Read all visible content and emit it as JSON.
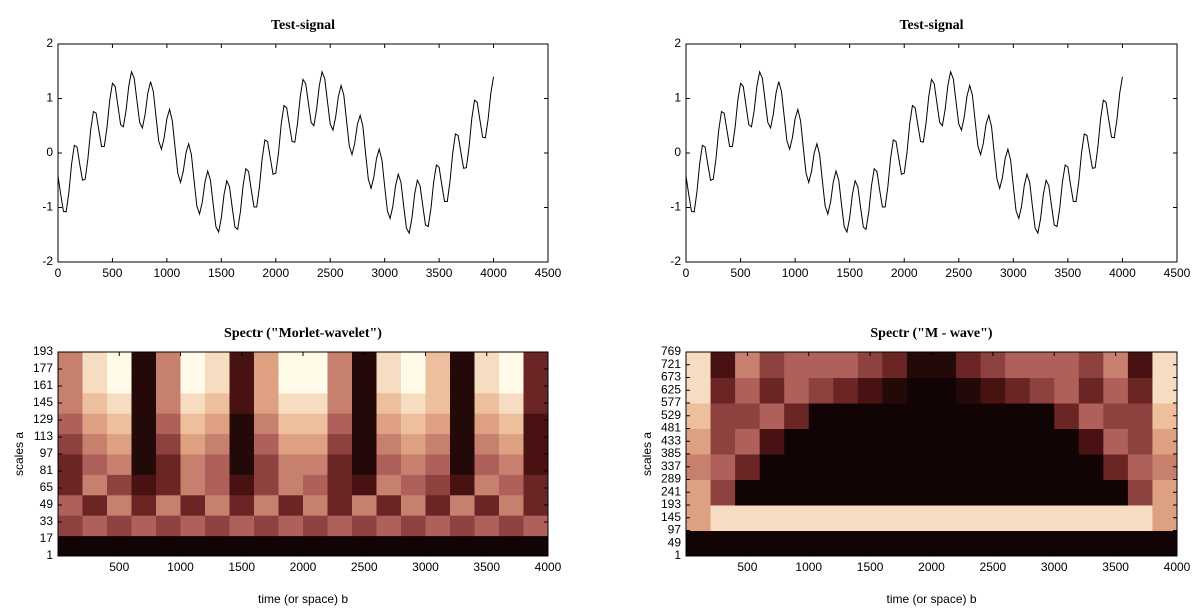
{
  "chart_data": [
    {
      "type": "line",
      "title": "Test-signal",
      "color": "#000000",
      "xlim": [
        0,
        4500
      ],
      "xticks": [
        0,
        500,
        1000,
        1500,
        2000,
        2500,
        3000,
        3500,
        4000,
        4500
      ],
      "ylim": [
        -2,
        2
      ],
      "yticks": [
        -2,
        -1,
        0,
        1,
        2
      ],
      "x": [
        0,
        25,
        50,
        75,
        100,
        125,
        150,
        175,
        200,
        225,
        250,
        275,
        300,
        325,
        350,
        375,
        400,
        425,
        450,
        475,
        500,
        525,
        550,
        575,
        600,
        625,
        650,
        675,
        700,
        725,
        750,
        775,
        800,
        825,
        850,
        875,
        900,
        925,
        950,
        975,
        1000,
        1025,
        1050,
        1075,
        1100,
        1125,
        1150,
        1175,
        1200,
        1225,
        1250,
        1275,
        1300,
        1325,
        1350,
        1375,
        1400,
        1425,
        1450,
        1475,
        1500,
        1525,
        1550,
        1575,
        1600,
        1625,
        1650,
        1675,
        1700,
        1725,
        1750,
        1775,
        1800,
        1825,
        1850,
        1875,
        1900,
        1925,
        1950,
        1975,
        2000,
        2025,
        2050,
        2075,
        2100,
        2125,
        2150,
        2175,
        2200,
        2225,
        2250,
        2275,
        2300,
        2325,
        2350,
        2375,
        2400,
        2425,
        2450,
        2475,
        2500,
        2525,
        2550,
        2575,
        2600,
        2625,
        2650,
        2675,
        2700,
        2725,
        2750,
        2775,
        2800,
        2825,
        2850,
        2875,
        2900,
        2925,
        2950,
        2975,
        3000,
        3025,
        3050,
        3075,
        3100,
        3125,
        3150,
        3175,
        3200,
        3225,
        3250,
        3275,
        3300,
        3325,
        3350,
        3375,
        3400,
        3425,
        3450,
        3475,
        3500,
        3525,
        3550,
        3575,
        3600,
        3625,
        3650,
        3675,
        3700,
        3725,
        3750,
        3775,
        3800,
        3825,
        3850,
        3875,
        3900,
        3925,
        3950,
        3975,
        4000
      ],
      "values": [
        -0.42,
        -0.76,
        -1.07,
        -1.08,
        -0.72,
        -0.2,
        0.14,
        0.11,
        -0.21,
        -0.5,
        -0.48,
        -0.1,
        0.42,
        0.76,
        0.73,
        0.42,
        0.12,
        0.12,
        0.47,
        0.97,
        1.28,
        1.22,
        0.87,
        0.52,
        0.48,
        0.78,
        1.23,
        1.49,
        1.37,
        0.96,
        0.56,
        0.46,
        0.71,
        1.1,
        1.31,
        1.13,
        0.67,
        0.22,
        0.07,
        0.28,
        0.63,
        0.8,
        0.59,
        0.1,
        -0.37,
        -0.54,
        -0.34,
        0,
        0.17,
        -0.03,
        -0.51,
        -0.97,
        -1.12,
        -0.9,
        -0.53,
        -0.33,
        -0.5,
        -0.94,
        -1.35,
        -1.45,
        -1.19,
        -0.76,
        -0.51,
        -0.62,
        -1,
        -1.36,
        -1.4,
        -1.08,
        -0.6,
        -0.29,
        -0.34,
        -0.68,
        -0.99,
        -0.99,
        -0.62,
        -0.1,
        0.24,
        0.21,
        -0.1,
        -0.39,
        -0.37,
        0,
        0.53,
        0.87,
        0.83,
        0.51,
        0.21,
        0.2,
        0.55,
        1.04,
        1.35,
        1.27,
        0.91,
        0.56,
        0.5,
        0.8,
        1.24,
        1.49,
        1.36,
        0.94,
        0.53,
        0.42,
        0.66,
        1.04,
        1.24,
        1.06,
        0.59,
        0.13,
        -0.03,
        0.18,
        0.53,
        0.69,
        0.49,
        -0.01,
        -0.48,
        -0.65,
        -0.45,
        -0.1,
        0.07,
        -0.13,
        -0.61,
        -1.06,
        -1.2,
        -0.98,
        -0.6,
        -0.39,
        -0.54,
        -0.98,
        -1.38,
        -1.47,
        -1.2,
        -0.76,
        -0.5,
        -0.6,
        -0.97,
        -1.32,
        -1.35,
        -1.02,
        -0.53,
        -0.22,
        -0.26,
        -0.59,
        -0.89,
        -0.89,
        -0.52,
        0,
        0.35,
        0.32,
        0.01,
        -0.28,
        -0.27,
        0.11,
        0.63,
        0.97,
        0.93,
        0.6,
        0.29,
        0.28,
        0.62,
        1.1,
        1.4
      ]
    },
    {
      "type": "line",
      "title": "Test-signal",
      "color": "#000000",
      "xlim": [
        0,
        4500
      ],
      "xticks": [
        0,
        500,
        1000,
        1500,
        2000,
        2500,
        3000,
        3500,
        4000,
        4500
      ],
      "ylim": [
        -2,
        2
      ],
      "yticks": [
        -2,
        -1,
        0,
        1,
        2
      ],
      "x": [
        0,
        25,
        50,
        75,
        100,
        125,
        150,
        175,
        200,
        225,
        250,
        275,
        300,
        325,
        350,
        375,
        400,
        425,
        450,
        475,
        500,
        525,
        550,
        575,
        600,
        625,
        650,
        675,
        700,
        725,
        750,
        775,
        800,
        825,
        850,
        875,
        900,
        925,
        950,
        975,
        1000,
        1025,
        1050,
        1075,
        1100,
        1125,
        1150,
        1175,
        1200,
        1225,
        1250,
        1275,
        1300,
        1325,
        1350,
        1375,
        1400,
        1425,
        1450,
        1475,
        1500,
        1525,
        1550,
        1575,
        1600,
        1625,
        1650,
        1675,
        1700,
        1725,
        1750,
        1775,
        1800,
        1825,
        1850,
        1875,
        1900,
        1925,
        1950,
        1975,
        2000,
        2025,
        2050,
        2075,
        2100,
        2125,
        2150,
        2175,
        2200,
        2225,
        2250,
        2275,
        2300,
        2325,
        2350,
        2375,
        2400,
        2425,
        2450,
        2475,
        2500,
        2525,
        2550,
        2575,
        2600,
        2625,
        2650,
        2675,
        2700,
        2725,
        2750,
        2775,
        2800,
        2825,
        2850,
        2875,
        2900,
        2925,
        2950,
        2975,
        3000,
        3025,
        3050,
        3075,
        3100,
        3125,
        3150,
        3175,
        3200,
        3225,
        3250,
        3275,
        3300,
        3325,
        3350,
        3375,
        3400,
        3425,
        3450,
        3475,
        3500,
        3525,
        3550,
        3575,
        3600,
        3625,
        3650,
        3675,
        3700,
        3725,
        3750,
        3775,
        3800,
        3825,
        3850,
        3875,
        3900,
        3925,
        3950,
        3975,
        4000
      ],
      "values": [
        -0.42,
        -0.76,
        -1.07,
        -1.08,
        -0.72,
        -0.2,
        0.14,
        0.11,
        -0.21,
        -0.5,
        -0.48,
        -0.1,
        0.42,
        0.76,
        0.73,
        0.42,
        0.12,
        0.12,
        0.47,
        0.97,
        1.28,
        1.22,
        0.87,
        0.52,
        0.48,
        0.78,
        1.23,
        1.49,
        1.37,
        0.96,
        0.56,
        0.46,
        0.71,
        1.1,
        1.31,
        1.13,
        0.67,
        0.22,
        0.07,
        0.28,
        0.63,
        0.8,
        0.59,
        0.1,
        -0.37,
        -0.54,
        -0.34,
        0,
        0.17,
        -0.03,
        -0.51,
        -0.97,
        -1.12,
        -0.9,
        -0.53,
        -0.33,
        -0.5,
        -0.94,
        -1.35,
        -1.45,
        -1.19,
        -0.76,
        -0.51,
        -0.62,
        -1,
        -1.36,
        -1.4,
        -1.08,
        -0.6,
        -0.29,
        -0.34,
        -0.68,
        -0.99,
        -0.99,
        -0.62,
        -0.1,
        0.24,
        0.21,
        -0.1,
        -0.39,
        -0.37,
        0,
        0.53,
        0.87,
        0.83,
        0.51,
        0.21,
        0.2,
        0.55,
        1.04,
        1.35,
        1.27,
        0.91,
        0.56,
        0.5,
        0.8,
        1.24,
        1.49,
        1.36,
        0.94,
        0.53,
        0.42,
        0.66,
        1.04,
        1.24,
        1.06,
        0.59,
        0.13,
        -0.03,
        0.18,
        0.53,
        0.69,
        0.49,
        -0.01,
        -0.48,
        -0.65,
        -0.45,
        -0.1,
        0.07,
        -0.13,
        -0.61,
        -1.06,
        -1.2,
        -0.98,
        -0.6,
        -0.39,
        -0.54,
        -0.98,
        -1.38,
        -1.47,
        -1.2,
        -0.76,
        -0.5,
        -0.6,
        -0.97,
        -1.32,
        -1.35,
        -1.02,
        -0.53,
        -0.22,
        -0.26,
        -0.59,
        -0.89,
        -0.89,
        -0.52,
        0,
        0.35,
        0.32,
        0.01,
        -0.28,
        -0.27,
        0.11,
        0.63,
        0.97,
        0.93,
        0.6,
        0.29,
        0.28,
        0.62,
        1.1,
        1.4
      ]
    },
    {
      "type": "heatmap",
      "title": "Spectr  (\"Morlet-wavelet\")",
      "xlabel": "time (or space) b",
      "ylabel": "scales a",
      "colormap": [
        "#000000",
        "#5a1616",
        "#b0605a",
        "#e8b08a",
        "#fffbe8"
      ],
      "xlim": [
        0,
        4000
      ],
      "xticks": [
        500,
        1000,
        1500,
        2000,
        2500,
        3000,
        3500,
        4000
      ],
      "ylim": [
        1,
        193
      ],
      "yticks": [
        1,
        17,
        33,
        49,
        65,
        81,
        97,
        113,
        129,
        145,
        161,
        177,
        193
      ],
      "z": [
        [
          0.05,
          0.05,
          0.05,
          0.05,
          0.05,
          0.05,
          0.05,
          0.05,
          0.05,
          0.05,
          0.05,
          0.05,
          0.05,
          0.05,
          0.05,
          0.05,
          0.05,
          0.05,
          0.05,
          0.05
        ],
        [
          0.4,
          0.5,
          0.4,
          0.5,
          0.4,
          0.5,
          0.4,
          0.5,
          0.4,
          0.5,
          0.4,
          0.5,
          0.4,
          0.5,
          0.4,
          0.5,
          0.4,
          0.5,
          0.4,
          0.5
        ],
        [
          0.5,
          0.3,
          0.6,
          0.3,
          0.6,
          0.3,
          0.6,
          0.3,
          0.6,
          0.3,
          0.6,
          0.3,
          0.6,
          0.3,
          0.6,
          0.3,
          0.6,
          0.3,
          0.6,
          0.3
        ],
        [
          0.3,
          0.6,
          0.4,
          0.2,
          0.3,
          0.6,
          0.5,
          0.2,
          0.4,
          0.6,
          0.5,
          0.3,
          0.2,
          0.6,
          0.5,
          0.4,
          0.2,
          0.6,
          0.5,
          0.3
        ],
        [
          0.3,
          0.5,
          0.6,
          0.1,
          0.3,
          0.6,
          0.5,
          0.1,
          0.4,
          0.6,
          0.6,
          0.3,
          0.1,
          0.5,
          0.6,
          0.5,
          0.1,
          0.5,
          0.6,
          0.2
        ],
        [
          0.4,
          0.6,
          0.7,
          0.1,
          0.4,
          0.7,
          0.6,
          0.1,
          0.5,
          0.7,
          0.7,
          0.4,
          0.1,
          0.6,
          0.7,
          0.6,
          0.1,
          0.6,
          0.7,
          0.2
        ],
        [
          0.5,
          0.7,
          0.8,
          0.1,
          0.5,
          0.8,
          0.7,
          0.1,
          0.6,
          0.8,
          0.8,
          0.5,
          0.1,
          0.7,
          0.8,
          0.7,
          0.1,
          0.7,
          0.8,
          0.2
        ],
        [
          0.6,
          0.8,
          0.9,
          0.1,
          0.6,
          0.9,
          0.8,
          0.2,
          0.7,
          0.9,
          0.9,
          0.6,
          0.1,
          0.8,
          0.9,
          0.8,
          0.1,
          0.8,
          0.9,
          0.3
        ],
        [
          0.6,
          0.9,
          1,
          0.1,
          0.6,
          1,
          0.9,
          0.2,
          0.7,
          1,
          1,
          0.6,
          0.1,
          0.9,
          1,
          0.8,
          0.1,
          0.9,
          1,
          0.3
        ],
        [
          0.6,
          0.9,
          1,
          0.1,
          0.6,
          1,
          0.9,
          0.2,
          0.7,
          1,
          1,
          0.6,
          0.1,
          0.9,
          1,
          0.8,
          0.1,
          0.9,
          1,
          0.3
        ]
      ]
    },
    {
      "type": "heatmap",
      "title": "Spectr  (\"M - wave\")",
      "xlabel": "time (or space) b",
      "ylabel": "scales a",
      "colormap": [
        "#000000",
        "#5a1616",
        "#b0605a",
        "#e8b08a",
        "#fffbe8"
      ],
      "xlim": [
        0,
        4000
      ],
      "xticks": [
        500,
        1000,
        1500,
        2000,
        2500,
        3000,
        3500,
        4000
      ],
      "ylim": [
        1,
        769
      ],
      "yticks": [
        1,
        49,
        97,
        145,
        193,
        241,
        289,
        337,
        385,
        433,
        481,
        529,
        577,
        625,
        673,
        721,
        769
      ],
      "z": [
        [
          0.05,
          0.05,
          0.05,
          0.05,
          0.05,
          0.05,
          0.05,
          0.05,
          0.05,
          0.05,
          0.05,
          0.05,
          0.05,
          0.05,
          0.05,
          0.05,
          0.05,
          0.05,
          0.05,
          0.05
        ],
        [
          0.7,
          0.9,
          0.9,
          0.9,
          0.9,
          0.9,
          0.9,
          0.9,
          0.9,
          0.9,
          0.9,
          0.9,
          0.9,
          0.9,
          0.9,
          0.9,
          0.9,
          0.9,
          0.9,
          0.7
        ],
        [
          0.7,
          0.4,
          0.05,
          0.05,
          0.05,
          0.05,
          0.05,
          0.05,
          0.05,
          0.05,
          0.05,
          0.05,
          0.05,
          0.05,
          0.05,
          0.05,
          0.05,
          0.05,
          0.4,
          0.7
        ],
        [
          0.6,
          0.5,
          0.3,
          0.05,
          0.05,
          0.05,
          0.05,
          0.05,
          0.05,
          0.05,
          0.05,
          0.05,
          0.05,
          0.05,
          0.05,
          0.05,
          0.05,
          0.3,
          0.5,
          0.6
        ],
        [
          0.7,
          0.4,
          0.5,
          0.2,
          0.05,
          0.05,
          0.05,
          0.05,
          0.05,
          0.05,
          0.05,
          0.05,
          0.05,
          0.05,
          0.05,
          0.05,
          0.2,
          0.5,
          0.4,
          0.7
        ],
        [
          0.8,
          0.4,
          0.4,
          0.5,
          0.3,
          0.05,
          0.05,
          0.05,
          0.05,
          0.05,
          0.05,
          0.05,
          0.05,
          0.05,
          0.05,
          0.3,
          0.5,
          0.4,
          0.4,
          0.8
        ],
        [
          0.9,
          0.3,
          0.5,
          0.3,
          0.5,
          0.4,
          0.3,
          0.2,
          0.1,
          0.05,
          0.05,
          0.1,
          0.2,
          0.3,
          0.4,
          0.5,
          0.3,
          0.5,
          0.3,
          0.9
        ],
        [
          0.9,
          0.2,
          0.6,
          0.4,
          0.5,
          0.5,
          0.5,
          0.4,
          0.3,
          0.1,
          0.1,
          0.3,
          0.4,
          0.5,
          0.5,
          0.5,
          0.4,
          0.6,
          0.2,
          0.9
        ]
      ]
    }
  ]
}
